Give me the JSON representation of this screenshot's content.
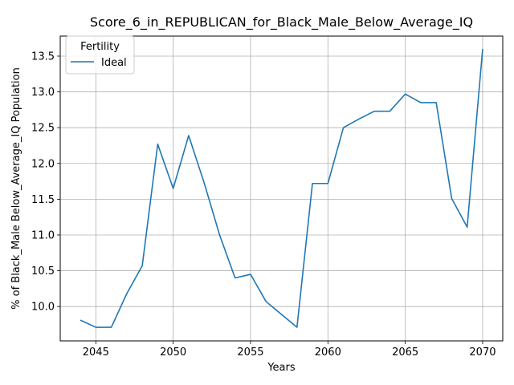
{
  "chart_data": {
    "type": "line",
    "title": "Score_6_in_REPUBLICAN_for_Black_Male_Below_Average_IQ",
    "xlabel": "Years",
    "ylabel": "% of Black_Male Below_Average_IQ Population",
    "xlim": [
      2042.7,
      2071.3
    ],
    "ylim": [
      9.52,
      13.78
    ],
    "xticks": [
      2045,
      2050,
      2055,
      2060,
      2065,
      2070
    ],
    "yticks": [
      10.0,
      10.5,
      11.0,
      11.5,
      12.0,
      12.5,
      13.0,
      13.5
    ],
    "grid": true,
    "legend": {
      "title": "Fertility",
      "placement": "top-left"
    },
    "series": [
      {
        "name": "Ideal",
        "color": "#1f77b4",
        "x": [
          2044,
          2045,
          2046,
          2047,
          2048,
          2049,
          2050,
          2051,
          2052,
          2053,
          2054,
          2055,
          2056,
          2057,
          2058,
          2059,
          2060,
          2061,
          2062,
          2063,
          2064,
          2065,
          2066,
          2067,
          2068,
          2069,
          2070
        ],
        "y": [
          9.81,
          9.71,
          9.71,
          10.18,
          10.57,
          12.27,
          11.65,
          12.39,
          11.73,
          11.0,
          10.4,
          10.45,
          10.07,
          9.89,
          9.71,
          11.72,
          11.72,
          12.5,
          12.62,
          12.73,
          12.73,
          12.97,
          12.85,
          12.85,
          11.51,
          11.11,
          13.6
        ]
      }
    ]
  }
}
